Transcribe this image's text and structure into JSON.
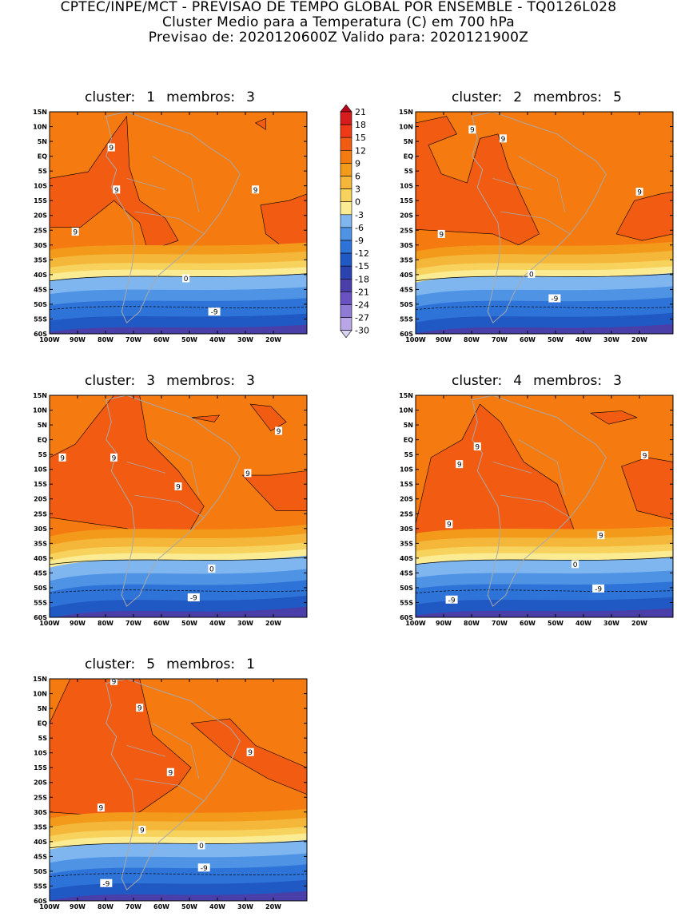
{
  "header": {
    "line1": "CPTEC/INPE/MCT - PREVISAO DE TEMPO GLOBAL POR ENSEMBLE - TQ0126L028",
    "line2": "Cluster Medio para a Temperatura (C) em 700 hPa",
    "line3": "Previsao de: 2020120600Z    Valido para: 2020121900Z"
  },
  "lat_labels": [
    "15N",
    "10N",
    "5N",
    "EQ",
    "5S",
    "10S",
    "15S",
    "20S",
    "25S",
    "30S",
    "35S",
    "40S",
    "45S",
    "50S",
    "55S",
    "60S"
  ],
  "lon_labels": [
    "100W",
    "90W",
    "80W",
    "70W",
    "60W",
    "50W",
    "40W",
    "30W",
    "20W"
  ],
  "colorbar": {
    "levels": [
      "21",
      "18",
      "15",
      "12",
      "9",
      "6",
      "3",
      "0",
      "-3",
      "-6",
      "-9",
      "-12",
      "-15",
      "-18",
      "-21",
      "-24",
      "-27",
      "-30"
    ],
    "colors": [
      "#b8001a",
      "#d61c1c",
      "#ee3a17",
      "#f25b12",
      "#f57a10",
      "#f39a1b",
      "#f5b73a",
      "#f7d35e",
      "#fbeb93",
      "#7fb6ef",
      "#4f93e5",
      "#2e74d8",
      "#2058c4",
      "#2b43b0",
      "#4a3ea8",
      "#6a52c2",
      "#8f7ad6",
      "#b8a6e6",
      "#dcd2f3"
    ]
  },
  "clusters": [
    {
      "label": "cluster:",
      "number": "1",
      "members_label": "membros:",
      "members": "3",
      "contours": [
        {
          "label": "9"
        },
        {
          "label": "9"
        },
        {
          "label": "9"
        },
        {
          "label": "9"
        },
        {
          "label": "0"
        },
        {
          "label": "-9"
        }
      ]
    },
    {
      "label": "cluster:",
      "number": "2",
      "members_label": "membros:",
      "members": "5",
      "contours": [
        {
          "label": "9"
        },
        {
          "label": "9"
        },
        {
          "label": "9"
        },
        {
          "label": "9"
        },
        {
          "label": "0"
        },
        {
          "label": "-9"
        }
      ]
    },
    {
      "label": "cluster:",
      "number": "3",
      "members_label": "membros:",
      "members": "3",
      "contours": [
        {
          "label": "9"
        },
        {
          "label": "9"
        },
        {
          "label": "9"
        },
        {
          "label": "9"
        },
        {
          "label": "9"
        },
        {
          "label": "0"
        },
        {
          "label": "-9"
        }
      ]
    },
    {
      "label": "cluster:",
      "number": "4",
      "members_label": "membros:",
      "members": "3",
      "contours": [
        {
          "label": "9"
        },
        {
          "label": "9"
        },
        {
          "label": "9"
        },
        {
          "label": "9"
        },
        {
          "label": "9"
        },
        {
          "label": "0"
        },
        {
          "label": "-9"
        },
        {
          "label": "-9"
        }
      ]
    },
    {
      "label": "cluster:",
      "number": "5",
      "members_label": "membros:",
      "members": "1",
      "contours": [
        {
          "label": "9"
        },
        {
          "label": "9"
        },
        {
          "label": "9"
        },
        {
          "label": "9"
        },
        {
          "label": "9"
        },
        {
          "label": "9"
        },
        {
          "label": "0"
        },
        {
          "label": "-9"
        },
        {
          "label": "-9"
        }
      ]
    }
  ]
}
